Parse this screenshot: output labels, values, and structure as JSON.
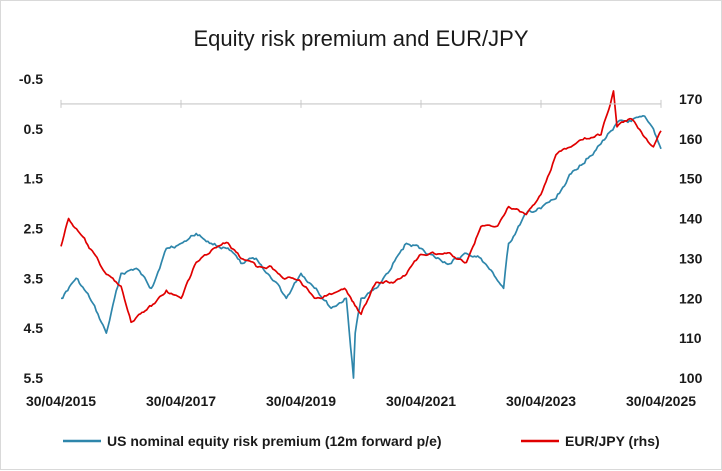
{
  "chart_data": {
    "type": "line",
    "title": "Equity risk premium and EUR/JPY",
    "xlabel": "",
    "ylabel_left": "",
    "ylabel_right": "",
    "left_axis_inverted": true,
    "ylim_left": [
      -0.5,
      5.5
    ],
    "ylim_right": [
      100,
      175
    ],
    "xlim": [
      "2015-04-30",
      "2025-04-30"
    ],
    "x_tick_labels": [
      "30/04/2015",
      "30/04/2017",
      "30/04/2019",
      "30/04/2021",
      "30/04/2023",
      "30/04/2025"
    ],
    "y_left_tick_labels": [
      "-0.5",
      "0.5",
      "1.5",
      "2.5",
      "3.5",
      "4.5",
      "5.5"
    ],
    "y_right_tick_labels": [
      "170",
      "160",
      "150",
      "140",
      "130",
      "120",
      "110",
      "100"
    ],
    "legend_position": "bottom",
    "colors": {
      "erp": "#2e86ab",
      "eurjpy": "#e00000"
    },
    "series": [
      {
        "name": "US nominal equity risk premium (12m forward p/e)",
        "axis": "left",
        "color": "#2e86ab",
        "x": [
          "2015-04-30",
          "2015-07-31",
          "2015-10-31",
          "2016-01-31",
          "2016-04-30",
          "2016-07-31",
          "2016-10-31",
          "2017-01-31",
          "2017-04-30",
          "2017-07-31",
          "2017-10-31",
          "2018-01-31",
          "2018-04-30",
          "2018-07-31",
          "2018-10-31",
          "2019-01-31",
          "2019-04-30",
          "2019-07-31",
          "2019-10-31",
          "2020-01-31",
          "2020-03-15",
          "2020-03-25",
          "2020-04-30",
          "2020-07-31",
          "2020-10-31",
          "2021-01-31",
          "2021-04-30",
          "2021-07-31",
          "2021-10-31",
          "2022-01-31",
          "2022-04-30",
          "2022-07-31",
          "2022-09-15",
          "2022-10-15",
          "2023-01-31",
          "2023-04-30",
          "2023-07-31",
          "2023-10-31",
          "2024-01-31",
          "2024-04-30",
          "2024-07-31",
          "2024-10-31",
          "2025-01-31",
          "2025-03-15",
          "2025-04-30"
        ],
        "values": [
          3.9,
          3.5,
          3.95,
          4.6,
          3.4,
          3.3,
          3.7,
          2.9,
          2.8,
          2.6,
          2.8,
          2.9,
          3.2,
          3.1,
          3.5,
          3.9,
          3.4,
          3.7,
          4.1,
          3.9,
          5.5,
          4.6,
          3.9,
          3.7,
          3.3,
          2.8,
          2.9,
          3.1,
          3.2,
          3.0,
          3.1,
          3.5,
          3.7,
          2.8,
          2.2,
          2.1,
          1.9,
          1.4,
          1.1,
          0.8,
          0.4,
          0.35,
          0.3,
          0.5,
          0.9
        ]
      },
      {
        "name": "EUR/JPY (rhs)",
        "axis": "right",
        "color": "#e00000",
        "x": [
          "2015-04-30",
          "2015-06-15",
          "2015-09-30",
          "2016-01-31",
          "2016-04-30",
          "2016-06-30",
          "2016-10-31",
          "2017-01-31",
          "2017-04-30",
          "2017-07-31",
          "2017-10-31",
          "2018-01-31",
          "2018-04-30",
          "2018-07-31",
          "2018-10-31",
          "2019-01-31",
          "2019-04-30",
          "2019-07-31",
          "2019-10-31",
          "2020-01-31",
          "2020-03-15",
          "2020-04-30",
          "2020-07-31",
          "2020-10-31",
          "2021-01-31",
          "2021-04-30",
          "2021-07-31",
          "2021-10-31",
          "2022-01-31",
          "2022-04-30",
          "2022-07-31",
          "2022-10-15",
          "2023-01-31",
          "2023-04-30",
          "2023-07-31",
          "2023-10-31",
          "2024-01-31",
          "2024-04-30",
          "2024-07-15",
          "2024-08-05",
          "2024-10-31",
          "2025-01-31",
          "2025-03-15",
          "2025-04-30"
        ],
        "values": [
          133,
          140,
          134,
          126,
          123,
          114,
          118,
          122,
          120,
          129,
          132,
          134,
          130,
          128,
          128,
          125,
          124,
          120,
          121,
          122,
          119,
          116,
          124,
          124,
          126,
          131,
          131,
          131,
          129,
          138,
          138,
          143,
          141,
          146,
          156,
          158,
          160,
          161,
          172,
          163,
          165,
          160,
          158,
          162
        ]
      }
    ]
  }
}
